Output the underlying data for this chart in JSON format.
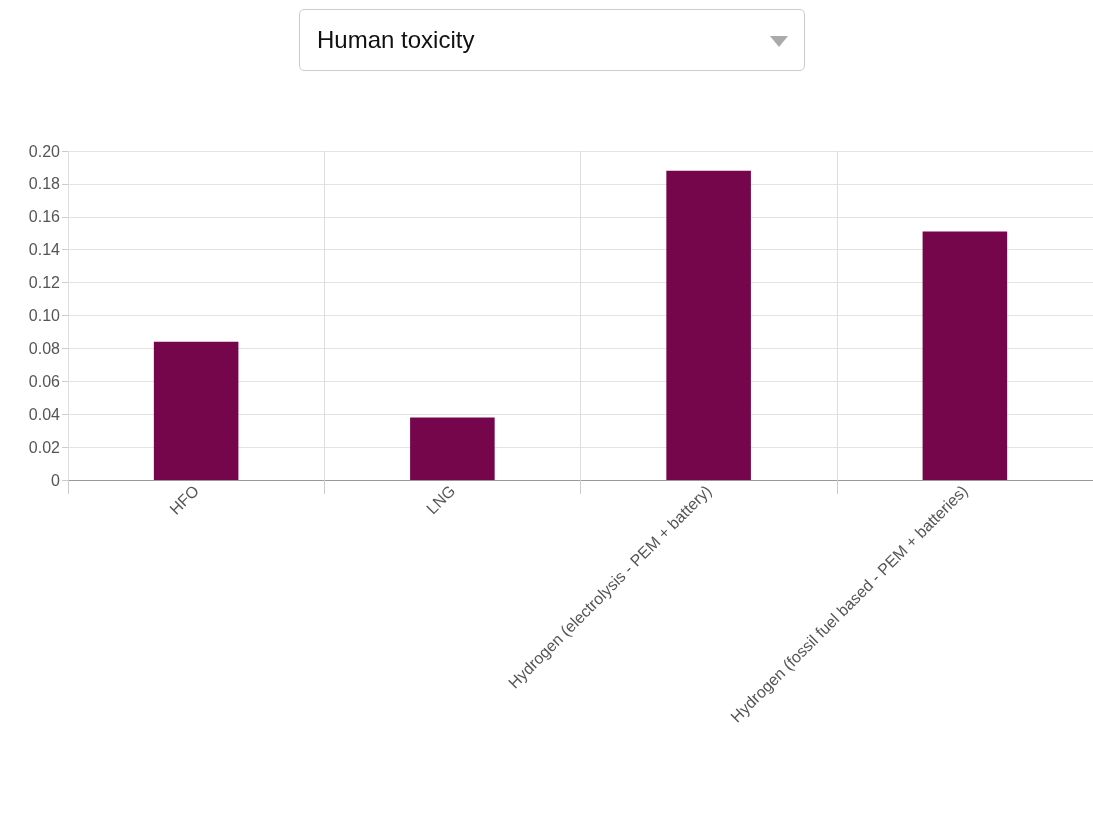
{
  "chart_data": {
    "type": "bar",
    "title": "Human toxicity",
    "categories": [
      "HFO",
      "LNG",
      "Hydrogen (electrolysis - PEM + battery)",
      "Hydrogen (fossil fuel based - PEM + batteries)"
    ],
    "values": [
      0.084,
      0.038,
      0.188,
      0.151
    ],
    "color": "#75064b",
    "ylim": [
      0,
      0.2
    ],
    "yticks": [
      0,
      {
        "value": 0.02,
        "label": "0.02"
      },
      {
        "value": 0.04,
        "label": "0.04"
      },
      {
        "value": 0.06,
        "label": "0.06"
      },
      {
        "value": 0.08,
        "label": "0.08"
      },
      {
        "value": 0.1,
        "label": "0.10"
      },
      {
        "value": 0.12,
        "label": "0.12"
      },
      {
        "value": 0.14,
        "label": "0.14"
      },
      {
        "value": 0.16,
        "label": "0.16"
      },
      {
        "value": 0.18,
        "label": "0.18"
      },
      {
        "value": 0.2,
        "label": "0.20"
      }
    ],
    "grid": true
  }
}
